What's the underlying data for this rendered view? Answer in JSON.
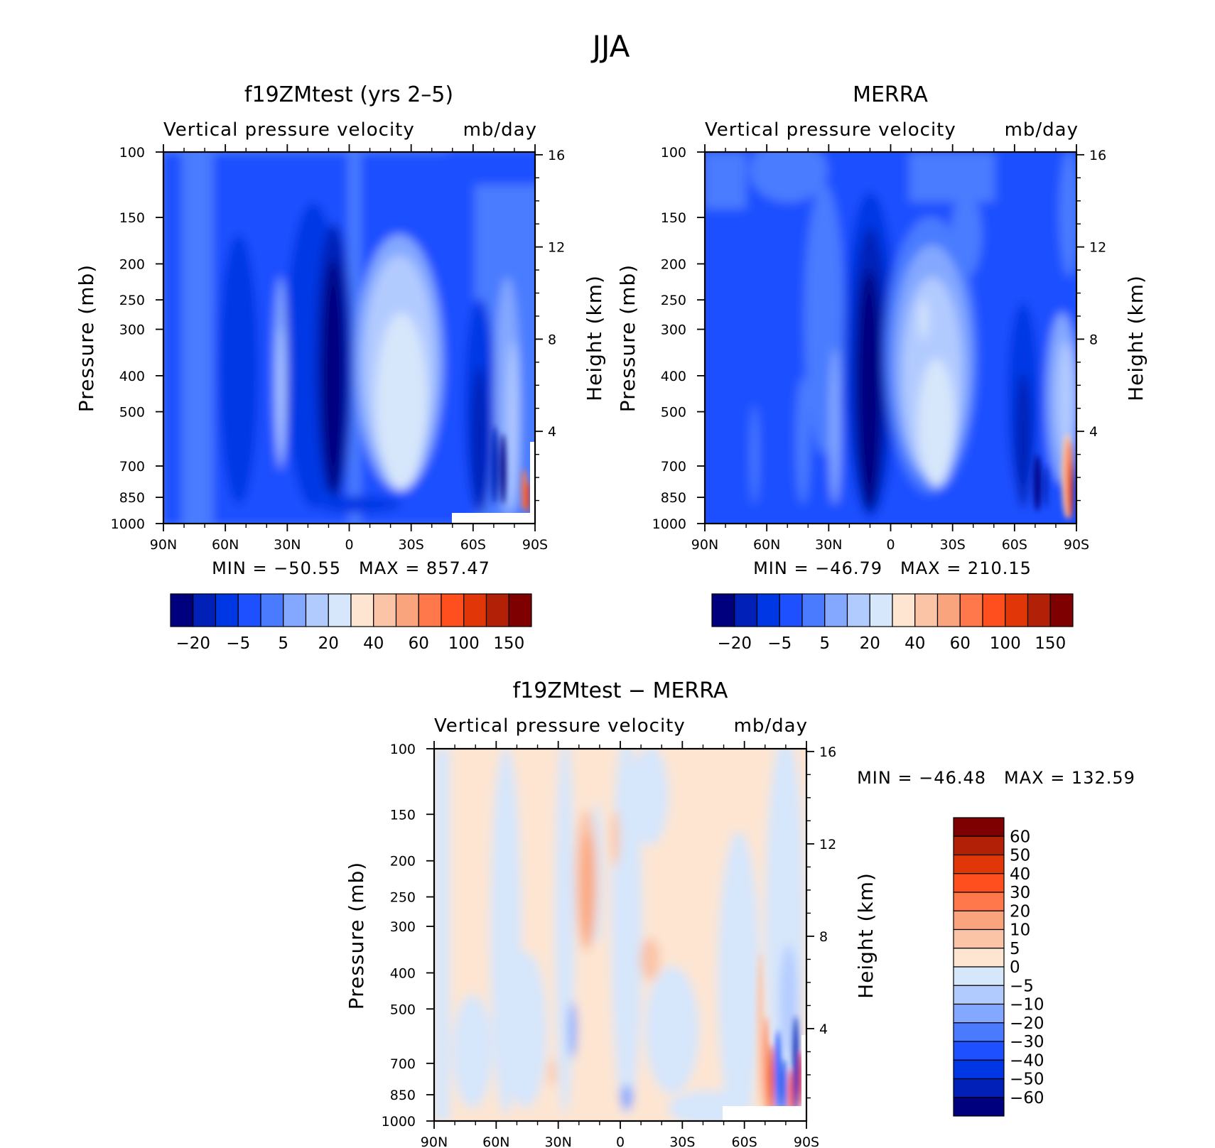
{
  "figure": {
    "title": "JJA"
  },
  "chart_data": [
    {
      "type": "heatmap",
      "title": "f19ZMtest (yrs 2–5)",
      "subtitle_left": "Vertical pressure velocity",
      "subtitle_right": "mb/day",
      "xlabel": "",
      "ylabel": "Pressure (mb)",
      "ylabel_right": "Height (km)",
      "x_ticks": [
        "90N",
        "60N",
        "30N",
        "0",
        "30S",
        "60S",
        "90S"
      ],
      "x_range": [
        90,
        -90
      ],
      "y_ticks": [
        "100",
        "150",
        "200",
        "250",
        "300",
        "400",
        "500",
        "700",
        "850",
        "1000"
      ],
      "y_range": [
        1000,
        100
      ],
      "y_scale": "log",
      "y_right_ticks": [
        "16",
        "12",
        "8",
        "4"
      ],
      "min_label": "MIN = −50.55",
      "max_label": "MAX = 857.47",
      "min": -50.55,
      "max": 857.47,
      "colorbar": {
        "orientation": "horizontal",
        "labels": [
          "−20",
          "−5",
          "5",
          "20",
          "40",
          "60",
          "100",
          "150"
        ],
        "colors": [
          "#00007f",
          "#0020b8",
          "#0037e5",
          "#1e50ff",
          "#4a7bff",
          "#84a8ff",
          "#b2cbff",
          "#d6e6fb",
          "#fde5d2",
          "#fbc4a7",
          "#f9a47d",
          "#ff784c",
          "#ff4f1e",
          "#e13608",
          "#b22008",
          "#7f0000"
        ]
      }
    },
    {
      "type": "heatmap",
      "title": "MERRA",
      "subtitle_left": "Vertical pressure velocity",
      "subtitle_right": "mb/day",
      "xlabel": "",
      "ylabel": "Pressure (mb)",
      "ylabel_right": "Height (km)",
      "x_ticks": [
        "90N",
        "60N",
        "30N",
        "0",
        "30S",
        "60S",
        "90S"
      ],
      "x_range": [
        90,
        -90
      ],
      "y_ticks": [
        "100",
        "150",
        "200",
        "250",
        "300",
        "400",
        "500",
        "700",
        "850",
        "1000"
      ],
      "y_range": [
        1000,
        100
      ],
      "y_scale": "log",
      "y_right_ticks": [
        "16",
        "12",
        "8",
        "4"
      ],
      "min_label": "MIN = −46.79",
      "max_label": "MAX = 210.15",
      "min": -46.79,
      "max": 210.15,
      "colorbar": {
        "orientation": "horizontal",
        "labels": [
          "−20",
          "−5",
          "5",
          "20",
          "40",
          "60",
          "100",
          "150"
        ],
        "colors": [
          "#00007f",
          "#0020b8",
          "#0037e5",
          "#1e50ff",
          "#4a7bff",
          "#84a8ff",
          "#b2cbff",
          "#d6e6fb",
          "#fde5d2",
          "#fbc4a7",
          "#f9a47d",
          "#ff784c",
          "#ff4f1e",
          "#e13608",
          "#b22008",
          "#7f0000"
        ]
      }
    },
    {
      "type": "heatmap",
      "title": "f19ZMtest − MERRA",
      "subtitle_left": "Vertical pressure velocity",
      "subtitle_right": "mb/day",
      "xlabel": "",
      "ylabel": "Pressure (mb)",
      "ylabel_right": "Height (km)",
      "x_ticks": [
        "90N",
        "60N",
        "30N",
        "0",
        "30S",
        "60S",
        "90S"
      ],
      "x_range": [
        90,
        -90
      ],
      "y_ticks": [
        "100",
        "150",
        "200",
        "250",
        "300",
        "400",
        "500",
        "700",
        "850",
        "1000"
      ],
      "y_range": [
        1000,
        100
      ],
      "y_scale": "log",
      "y_right_ticks": [
        "16",
        "12",
        "8",
        "4"
      ],
      "min_label": "MIN = −46.48",
      "max_label": "MAX = 132.59",
      "min": -46.48,
      "max": 132.59,
      "colorbar": {
        "orientation": "vertical",
        "labels": [
          "60",
          "50",
          "40",
          "30",
          "20",
          "10",
          "5",
          "0",
          "−5",
          "−10",
          "−20",
          "−30",
          "−40",
          "−50",
          "−60"
        ],
        "colors": [
          "#7f0000",
          "#b22008",
          "#e13608",
          "#ff4f1e",
          "#ff784c",
          "#f9a47d",
          "#fbc4a7",
          "#fde5d2",
          "#d6e6fb",
          "#b2cbff",
          "#84a8ff",
          "#4a7bff",
          "#1e50ff",
          "#0037e5",
          "#0020b8",
          "#00007f"
        ]
      }
    }
  ]
}
